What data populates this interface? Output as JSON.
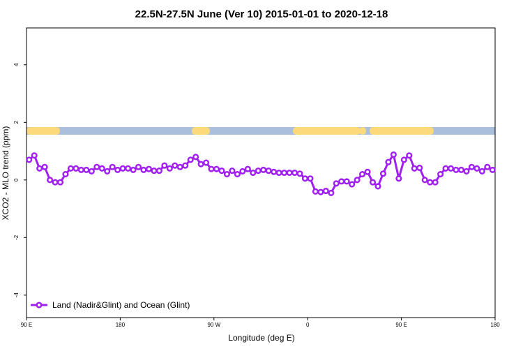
{
  "chart_data": {
    "type": "line",
    "title": "22.5N-27.5N June (Ver 10)   2015-01-01 to 2020-12-18",
    "x_label": "Longitude (deg E)",
    "y_label": "XCO2 - MLO trend (ppm)",
    "x": [
      92.5,
      97.5,
      102.5,
      107.5,
      112.5,
      117.5,
      122.5,
      127.5,
      132.5,
      137.5,
      142.5,
      147.5,
      152.5,
      157.5,
      162.5,
      167.5,
      172.5,
      177.5,
      182.5,
      187.5,
      192.5,
      197.5,
      202.5,
      207.5,
      212.5,
      217.5,
      222.5,
      227.5,
      232.5,
      237.5,
      242.5,
      247.5,
      252.5,
      257.5,
      262.5,
      267.5,
      272.5,
      277.5,
      282.5,
      287.5,
      292.5,
      297.5,
      302.5,
      307.5,
      312.5,
      317.5,
      322.5,
      327.5,
      332.5,
      337.5,
      342.5,
      347.5,
      352.5,
      357.5,
      362.5,
      367.5,
      372.5,
      377.5,
      382.5,
      387.5,
      392.5,
      397.5,
      402.5,
      407.5,
      412.5,
      417.5,
      422.5,
      427.5,
      432.5,
      437.5,
      442.5,
      447.5,
      452.5,
      457.5,
      462.5,
      467.5,
      472.5,
      477.5,
      482.5,
      487.5,
      492.5,
      497.5,
      502.5,
      507.5,
      512.5,
      517.5,
      522.5,
      527.5,
      532.5,
      537.5
    ],
    "series": [
      {
        "name": "Land (Nadir&Glint) and Ocean (Glint)",
        "color": "#a020f0",
        "values": [
          0.7,
          0.85,
          0.4,
          0.45,
          0.0,
          -0.08,
          -0.08,
          0.2,
          0.4,
          0.4,
          0.35,
          0.35,
          0.3,
          0.45,
          0.4,
          0.3,
          0.45,
          0.35,
          0.4,
          0.4,
          0.35,
          0.45,
          0.35,
          0.38,
          0.32,
          0.32,
          0.5,
          0.4,
          0.5,
          0.45,
          0.5,
          0.7,
          0.8,
          0.55,
          0.6,
          0.38,
          0.38,
          0.32,
          0.2,
          0.32,
          0.2,
          0.3,
          0.38,
          0.25,
          0.32,
          0.35,
          0.32,
          0.28,
          0.25,
          0.25,
          0.25,
          0.25,
          0.22,
          0.05,
          0.05,
          -0.4,
          -0.42,
          -0.38,
          -0.45,
          -0.12,
          -0.05,
          -0.05,
          -0.15,
          0.0,
          0.2,
          0.28,
          -0.08,
          -0.22,
          0.22,
          0.62,
          0.88,
          0.05,
          0.7,
          0.85,
          0.4,
          0.42,
          0.0,
          -0.08,
          -0.08,
          0.2,
          0.4,
          0.4,
          0.35,
          0.35,
          0.3,
          0.45,
          0.4,
          0.3,
          0.45,
          0.35
        ]
      }
    ],
    "xlim": [
      90,
      540
    ],
    "xticks": [
      {
        "value": 90,
        "label": "90 E"
      },
      180,
      {
        "value": 270,
        "label": "90 W"
      },
      {
        "value": 360,
        "label": "0"
      },
      {
        "value": 450,
        "label": "90 E"
      },
      {
        "value": 540,
        "label": "180"
      }
    ],
    "ylim": [
      -4.78,
      5.28
    ],
    "yticks": [
      -4,
      -2,
      0,
      2,
      4
    ],
    "legend": "bottom-left"
  }
}
